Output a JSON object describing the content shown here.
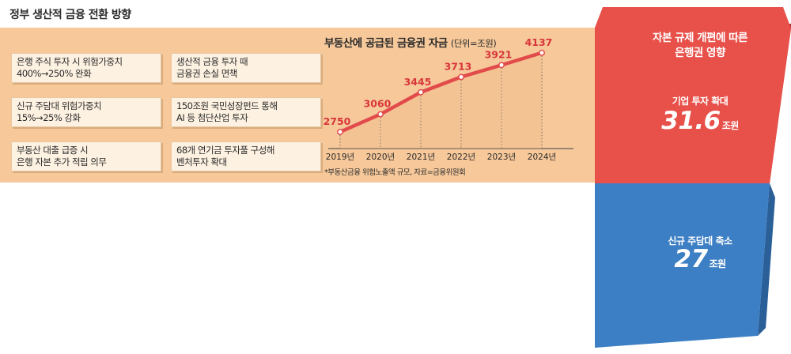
{
  "policy": {
    "title": "정부 생산적 금융 전환 방향",
    "cards": [
      {
        "line1": "은행 주식 투자 시 위험가중치",
        "line2": "400%→250% 완화"
      },
      {
        "line1": "생산적 금융 투자 때",
        "line2": "금융권 손실 면책"
      },
      {
        "line1": "신규 주담대 위험가중치",
        "line2": "15%→25% 강화"
      },
      {
        "line1": "150조원 국민성장펀드 통해",
        "line2": "AI 등 첨단산업 투자"
      },
      {
        "line1": "부동산 대출 급증 시",
        "line2": "은행 자본 추가 적립 의무"
      },
      {
        "line1": "68개 연기금 투자풀 구성해",
        "line2": "벤처투자 확대"
      }
    ]
  },
  "chart_heading": {
    "title": "부동산에 공급된 금융권 자금",
    "unit": "(단위=조원)",
    "note": "*부동산금융 위험노출액 규모, 자료=금융위원회"
  },
  "chart_data": {
    "type": "line",
    "categories": [
      "2019년",
      "2020년",
      "2021년",
      "2022년",
      "2023년",
      "2024년"
    ],
    "values": [
      2750,
      3060,
      3445,
      3713,
      3921,
      4137
    ],
    "ylim": [
      2500,
      4300
    ],
    "line_color": "#e24b4b",
    "grid": "dotted vertical"
  },
  "impact": {
    "title_line1": "자본 규제 개편에 따른",
    "title_line2": "은행권 영향",
    "up": {
      "label": "기업 투자 확대",
      "value": "31.6",
      "unit": "조원",
      "color": "#e8504a"
    },
    "down": {
      "label": "신규 주담대 축소",
      "value": "27",
      "unit": "조원",
      "color": "#3d7fc4"
    }
  }
}
